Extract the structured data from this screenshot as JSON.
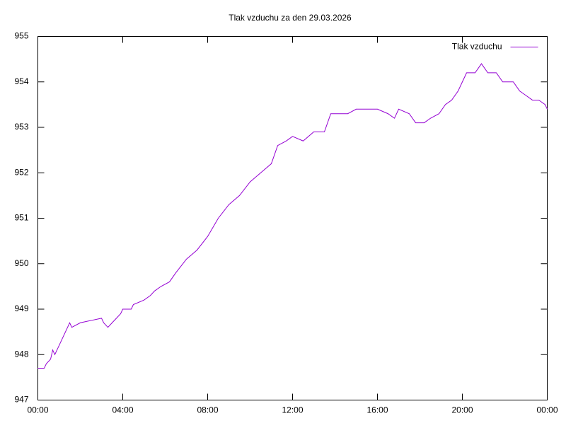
{
  "chart_data": {
    "type": "line",
    "title": "Tlak vzduchu za den 29.03.2026",
    "x": [
      0,
      0.3,
      0.4,
      0.6,
      0.7,
      0.8,
      0.9,
      1.0,
      1.2,
      1.4,
      1.5,
      1.6,
      2.0,
      2.5,
      3.0,
      3.1,
      3.3,
      3.5,
      3.9,
      4.0,
      4.4,
      4.5,
      5.0,
      5.3,
      5.5,
      5.8,
      6.2,
      6.5,
      7.0,
      7.5,
      8.0,
      8.5,
      9.0,
      9.5,
      10.0,
      10.5,
      11.0,
      11.3,
      11.7,
      12.0,
      12.5,
      13.0,
      13.5,
      13.8,
      14.2,
      14.6,
      15.0,
      15.5,
      16.0,
      16.5,
      16.8,
      17.0,
      17.5,
      17.8,
      18.2,
      18.5,
      18.9,
      19.2,
      19.5,
      19.8,
      20.0,
      20.2,
      20.6,
      20.9,
      21.2,
      21.6,
      21.9,
      22.4,
      22.7,
      23.0,
      23.3,
      23.6,
      23.9,
      24.0
    ],
    "series": [
      {
        "name": "Tlak vzduchu",
        "color": "#9400d3",
        "values": [
          947.7,
          947.7,
          947.8,
          947.9,
          948.1,
          948.0,
          948.1,
          948.2,
          948.4,
          948.6,
          948.7,
          948.6,
          948.7,
          948.75,
          948.8,
          948.7,
          948.6,
          948.7,
          948.9,
          949.0,
          949.0,
          949.1,
          949.2,
          949.3,
          949.4,
          949.5,
          949.6,
          949.8,
          950.1,
          950.3,
          950.6,
          951.0,
          951.3,
          951.5,
          951.8,
          952.0,
          952.2,
          952.6,
          952.7,
          952.8,
          952.7,
          952.9,
          952.9,
          953.3,
          953.3,
          953.3,
          953.4,
          953.4,
          953.4,
          953.3,
          953.2,
          953.4,
          953.3,
          953.1,
          953.1,
          953.2,
          953.3,
          953.5,
          953.6,
          953.8,
          954.0,
          954.2,
          954.2,
          954.4,
          954.2,
          954.2,
          954.0,
          954.0,
          953.8,
          953.7,
          953.6,
          953.6,
          953.5,
          953.4
        ]
      }
    ],
    "xlim": [
      0,
      24
    ],
    "xticks": [
      {
        "value": 0,
        "label": "00:00"
      },
      {
        "value": 4,
        "label": "04:00"
      },
      {
        "value": 8,
        "label": "08:00"
      },
      {
        "value": 12,
        "label": "12:00"
      },
      {
        "value": 16,
        "label": "16:00"
      },
      {
        "value": 20,
        "label": "20:00"
      },
      {
        "value": 24,
        "label": "00:00"
      }
    ],
    "ylim": [
      947,
      955
    ],
    "yticks": [
      947,
      948,
      949,
      950,
      951,
      952,
      953,
      954,
      955
    ],
    "grid": false,
    "legend": "top-right"
  }
}
